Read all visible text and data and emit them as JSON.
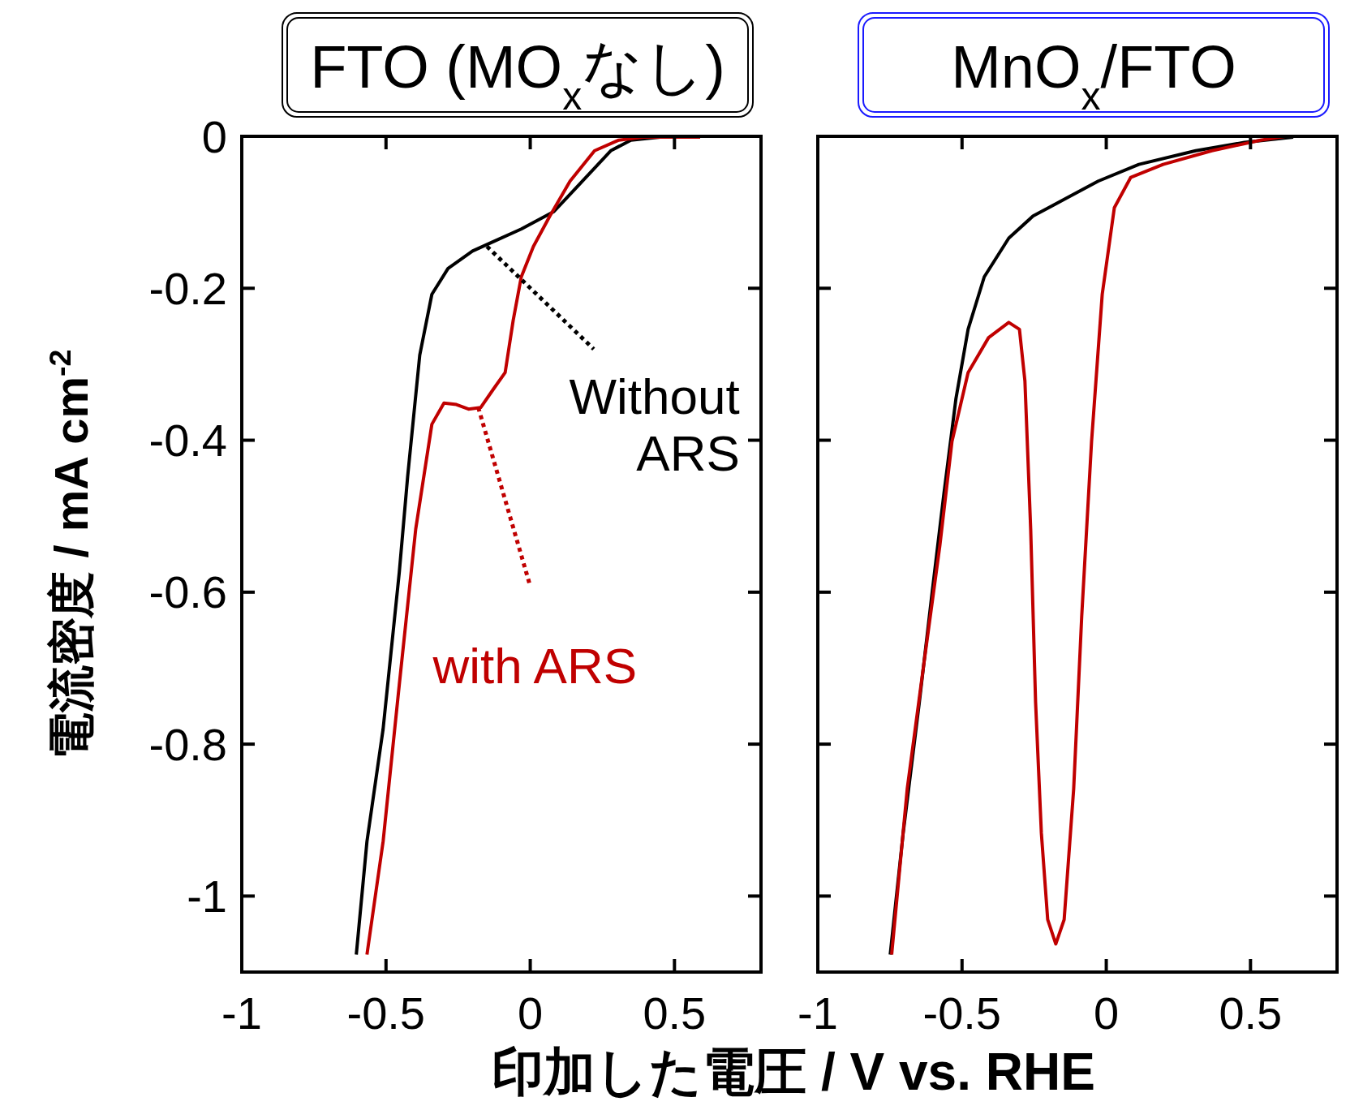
{
  "chart_data": [
    {
      "type": "line",
      "title": "FTO (MO$_{x}$なし)",
      "xlabel": "印加した電圧 / V vs. RHE",
      "ylabel": "電流密度 / mA cm$^{-2}$",
      "xlim": [
        -1,
        0.8
      ],
      "ylim": [
        -1.1,
        0
      ],
      "xticks": [
        -1,
        -0.5,
        0,
        0.5
      ],
      "yticks": [
        0,
        -0.2,
        -0.4,
        -0.6,
        -0.8,
        -1
      ],
      "grid": false,
      "line_style": "solid",
      "annotations": [
        {
          "text": "Without ARS",
          "x": -0.15,
          "y": -0.145
        },
        {
          "text": "with ARS",
          "x": -0.18,
          "y": -0.357
        }
      ],
      "series": [
        {
          "color": "#000000",
          "x": [
            -0.603,
            -0.566,
            -0.51,
            -0.454,
            -0.425,
            -0.383,
            -0.341,
            -0.285,
            -0.2,
            -0.13,
            -0.031,
            0.082,
            0.166,
            0.279,
            0.349,
            0.45
          ],
          "values": [
            -1.077,
            -0.928,
            -0.78,
            -0.574,
            -0.448,
            -0.288,
            -0.208,
            -0.174,
            -0.151,
            -0.139,
            -0.122,
            -0.099,
            -0.065,
            -0.019,
            -0.005,
            -0.001
          ]
        },
        {
          "color": "#c00000",
          "x": [
            -0.566,
            -0.51,
            -0.454,
            -0.397,
            -0.341,
            -0.299,
            -0.256,
            -0.214,
            -0.172,
            -0.13,
            -0.087,
            -0.059,
            -0.031,
            0.011,
            0.068,
            0.138,
            0.223,
            0.307,
            0.392,
            0.589
          ],
          "values": [
            -1.077,
            -0.928,
            -0.722,
            -0.517,
            -0.379,
            -0.351,
            -0.353,
            -0.359,
            -0.357,
            -0.334,
            -0.311,
            -0.242,
            -0.185,
            -0.145,
            -0.105,
            -0.059,
            -0.019,
            -0.005,
            -0.001,
            -0.001
          ]
        }
      ]
    },
    {
      "type": "line",
      "title": "MnO$_{x}$/FTO",
      "xlim": [
        -1,
        0.8
      ],
      "ylim": [
        -1.1,
        0
      ],
      "xticks": [
        -1,
        -0.5,
        0,
        0.5
      ],
      "yticks": [
        0,
        -0.2,
        -0.4,
        -0.6,
        -0.8,
        -1
      ],
      "tick_labels": "x",
      "grid": false,
      "line_style": "solid",
      "series": [
        {
          "color": "#000000",
          "x": [
            -0.749,
            -0.704,
            -0.648,
            -0.606,
            -0.563,
            -0.521,
            -0.479,
            -0.423,
            -0.338,
            -0.254,
            -0.141,
            -0.028,
            0.113,
            0.31,
            0.479,
            0.648
          ],
          "values": [
            -1.077,
            -0.917,
            -0.745,
            -0.608,
            -0.471,
            -0.345,
            -0.254,
            -0.185,
            -0.134,
            -0.105,
            -0.082,
            -0.059,
            -0.037,
            -0.019,
            -0.008,
            -0.001
          ]
        },
        {
          "color": "#c00000",
          "x": [
            -0.744,
            -0.69,
            -0.634,
            -0.577,
            -0.535,
            -0.479,
            -0.408,
            -0.338,
            -0.301,
            -0.282,
            -0.262,
            -0.245,
            -0.225,
            -0.203,
            -0.175,
            -0.146,
            -0.113,
            -0.085,
            -0.051,
            -0.014,
            0.028,
            0.085,
            0.197,
            0.366,
            0.535,
            0.62
          ],
          "values": [
            -1.077,
            -0.859,
            -0.699,
            -0.539,
            -0.402,
            -0.311,
            -0.265,
            -0.245,
            -0.254,
            -0.322,
            -0.517,
            -0.745,
            -0.917,
            -1.031,
            -1.063,
            -1.031,
            -0.859,
            -0.631,
            -0.402,
            -0.208,
            -0.094,
            -0.054,
            -0.037,
            -0.019,
            -0.005,
            0
          ]
        }
      ]
    }
  ]
}
